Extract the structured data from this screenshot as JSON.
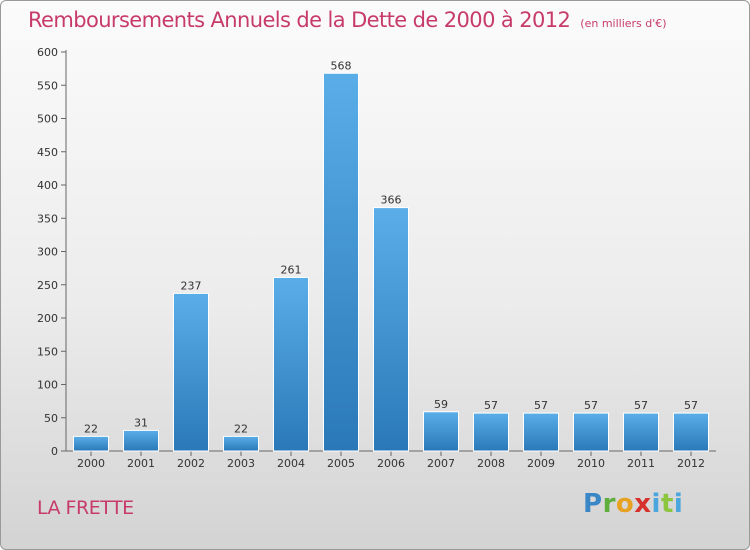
{
  "header": {
    "title": "Remboursements Annuels de la Dette de 2000 à 2012",
    "subtitle": "(en milliers d'€)"
  },
  "footer": {
    "city": "LA FRETTE",
    "logo": "Proxiti"
  },
  "colors": {
    "title": "#c73b6b",
    "bar_light": "#5aaee8",
    "bar_dark": "#2a78b8"
  },
  "chart_data": {
    "type": "bar",
    "title": "Remboursements Annuels de la Dette de 2000 à 2012",
    "subtitle": "(en milliers d'€)",
    "xlabel": "",
    "ylabel": "",
    "categories": [
      "2000",
      "2001",
      "2002",
      "2003",
      "2004",
      "2005",
      "2006",
      "2007",
      "2008",
      "2009",
      "2010",
      "2011",
      "2012"
    ],
    "values": [
      22,
      31,
      237,
      22,
      261,
      568,
      366,
      59,
      57,
      57,
      57,
      57,
      57
    ],
    "ylim": [
      0,
      600
    ],
    "yticks": [
      0,
      50,
      100,
      150,
      200,
      250,
      300,
      350,
      400,
      450,
      500,
      550,
      600
    ],
    "grid": false,
    "data_labels": true
  }
}
